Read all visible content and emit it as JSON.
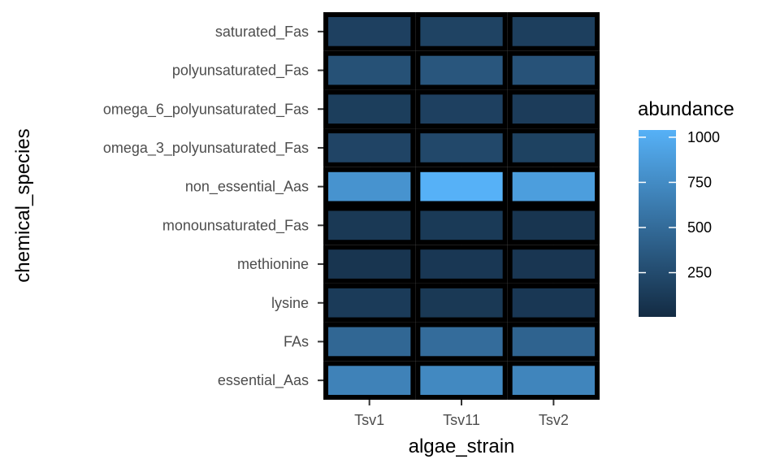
{
  "chart_data": {
    "type": "heatmap",
    "xlabel": "algae_strain",
    "ylabel": "chemical_species",
    "x_categories": [
      "Tsv1",
      "Tsv11",
      "Tsv2"
    ],
    "y_categories": [
      "essential_Aas",
      "FAs",
      "lysine",
      "methionine",
      "monounsaturated_Fas",
      "non_essential_Aas",
      "omega_3_polyunsaturated_Fas",
      "omega_6_polyunsaturated_Fas",
      "polyunsaturated_Fas",
      "saturated_Fas"
    ],
    "values": [
      [
        680,
        470,
        130,
        80,
        110,
        810,
        200,
        150,
        300,
        170
      ],
      [
        730,
        510,
        110,
        100,
        120,
        1040,
        230,
        170,
        340,
        190
      ],
      [
        700,
        440,
        100,
        90,
        80,
        890,
        180,
        140,
        310,
        160
      ]
    ],
    "colorbar": {
      "title": "abundance",
      "min": 5,
      "max": 1040,
      "ticks": [
        250,
        500,
        750,
        1000
      ],
      "low_color": "#132B43",
      "high_color": "#56B1F7"
    },
    "panel_background": "#EBEBEB",
    "tile_border_color": "#000000",
    "grid": true,
    "legend_position": "right"
  }
}
